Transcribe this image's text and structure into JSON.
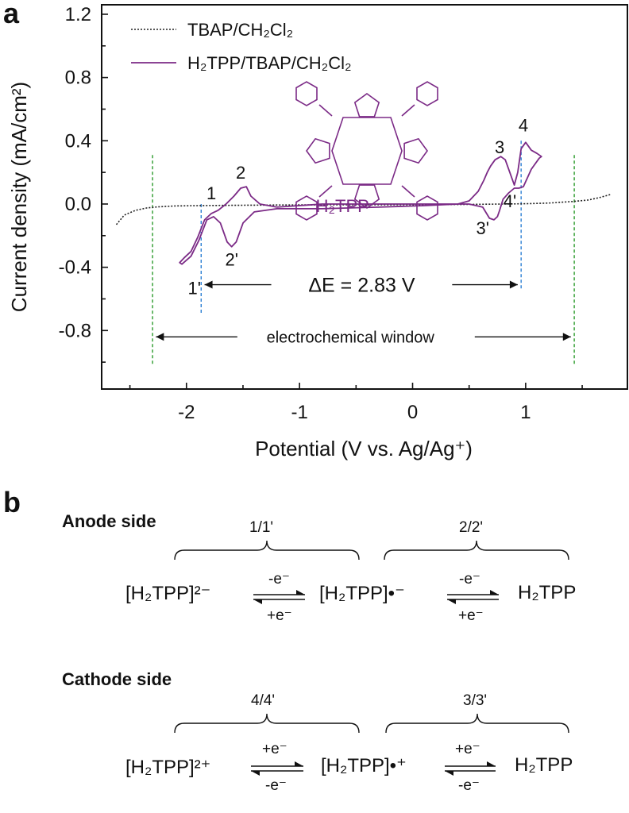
{
  "panel_a": {
    "letter": "a",
    "chart_data": {
      "type": "line",
      "title": "",
      "xlabel": "Potential (V vs. Ag/Ag⁺)",
      "ylabel": "Current density (mA/cm²)",
      "xlim": [
        -2.75,
        1.9
      ],
      "ylim": [
        -1.17,
        1.26
      ],
      "xticks": [
        -2,
        -1,
        0,
        1
      ],
      "xtick_labels": [
        "-2",
        "-1",
        "0",
        "1"
      ],
      "yticks": [
        -0.8,
        -0.4,
        0.0,
        0.4,
        0.8,
        1.2
      ],
      "ytick_labels": [
        "-0.8",
        "-0.4",
        "0.0",
        "0.4",
        "0.8",
        "1.2"
      ],
      "grid": false,
      "legend_position": "top-left",
      "series": [
        {
          "name": "TBAP/CH₂Cl₂",
          "style": "dotted",
          "color": "#222222",
          "x": [
            -2.62,
            -2.55,
            -2.45,
            -2.35,
            -2.25,
            -2.1,
            -1.9,
            -1.6,
            -1.2,
            -0.8,
            -0.4,
            0.0,
            0.4,
            0.8,
            1.0,
            1.2,
            1.4,
            1.55,
            1.65,
            1.75
          ],
          "y": [
            -0.13,
            -0.07,
            -0.04,
            -0.025,
            -0.018,
            -0.012,
            -0.01,
            -0.008,
            -0.006,
            -0.005,
            -0.005,
            -0.004,
            -0.003,
            0.0,
            0.002,
            0.006,
            0.015,
            0.025,
            0.04,
            0.06
          ]
        },
        {
          "name": "H₂TPP/TBAP/CH₂Cl₂",
          "style": "solid",
          "color": "#7b2a86",
          "x": [
            -1.2,
            -1.35,
            -1.43,
            -1.47,
            -1.52,
            -1.58,
            -1.65,
            -1.72,
            -1.78,
            -1.84,
            -1.9,
            -1.96,
            -2.02,
            -2.06,
            -2.04,
            -1.96,
            -1.89,
            -1.82,
            -1.76,
            -1.7,
            -1.64,
            -1.6,
            -1.56,
            -1.5,
            -1.4,
            -1.2,
            -0.8,
            -0.3,
            0.1,
            0.4,
            0.5,
            0.58,
            0.63,
            0.66,
            0.69,
            0.73,
            0.78,
            0.82,
            0.86,
            0.9,
            0.93,
            0.96,
            1.0,
            1.05,
            1.1,
            1.14,
            1.12,
            1.05,
            0.98,
            0.94,
            0.9,
            0.85,
            0.8,
            0.77,
            0.75,
            0.72,
            0.68,
            0.62,
            0.5,
            0.3,
            0.0,
            -0.4,
            -0.8,
            -1.2
          ],
          "y": [
            -0.02,
            0.0,
            0.05,
            0.11,
            0.1,
            0.05,
            0.0,
            -0.04,
            -0.06,
            -0.1,
            -0.21,
            -0.3,
            -0.34,
            -0.37,
            -0.38,
            -0.33,
            -0.23,
            -0.1,
            -0.08,
            -0.12,
            -0.24,
            -0.27,
            -0.24,
            -0.12,
            -0.05,
            -0.03,
            -0.03,
            -0.02,
            -0.01,
            0.0,
            0.02,
            0.08,
            0.15,
            0.2,
            0.24,
            0.28,
            0.3,
            0.28,
            0.2,
            0.12,
            0.2,
            0.35,
            0.39,
            0.34,
            0.32,
            0.3,
            0.29,
            0.22,
            0.11,
            0.1,
            0.1,
            0.07,
            0.03,
            -0.04,
            -0.08,
            -0.1,
            -0.09,
            -0.02,
            0.0,
            0.0,
            0.0,
            0.0,
            0.0,
            -0.02
          ]
        }
      ],
      "annotations": {
        "peak_labels": [
          {
            "text": "1",
            "x": -1.78,
            "y": 0.03
          },
          {
            "text": "2",
            "x": -1.52,
            "y": 0.16
          },
          {
            "text": "1'",
            "x": -1.93,
            "y": -0.57
          },
          {
            "text": "2'",
            "x": -1.6,
            "y": -0.39
          },
          {
            "text": "3",
            "x": 0.77,
            "y": 0.32
          },
          {
            "text": "4",
            "x": 0.98,
            "y": 0.46
          },
          {
            "text": "3'",
            "x": 0.62,
            "y": -0.19
          },
          {
            "text": "4'",
            "x": 0.86,
            "y": -0.02
          }
        ],
        "delta_e": "ΔE = 2.83 V",
        "window_label": "electrochemical window",
        "molecule_label": "H₂TPP",
        "blue_lines_x": [
          -1.87,
          0.96
        ],
        "green_lines_x": [
          -2.3,
          1.43
        ]
      }
    }
  },
  "panel_b": {
    "letter": "b",
    "anode": {
      "title": "Anode side",
      "brace_left": "1/1'",
      "brace_right": "2/2'",
      "species": [
        "[H₂TPP]²⁻",
        "[H₂TPP]•⁻",
        "H₂TPP"
      ],
      "arrow_top": "-e⁻",
      "arrow_bottom": "+e⁻"
    },
    "cathode": {
      "title": "Cathode side",
      "brace_left": "4/4'",
      "brace_right": "3/3'",
      "species": [
        "[H₂TPP]²⁺",
        "[H₂TPP]•⁺",
        "H₂TPP"
      ],
      "arrow_top": "+e⁻",
      "arrow_bottom": "-e⁻"
    }
  }
}
